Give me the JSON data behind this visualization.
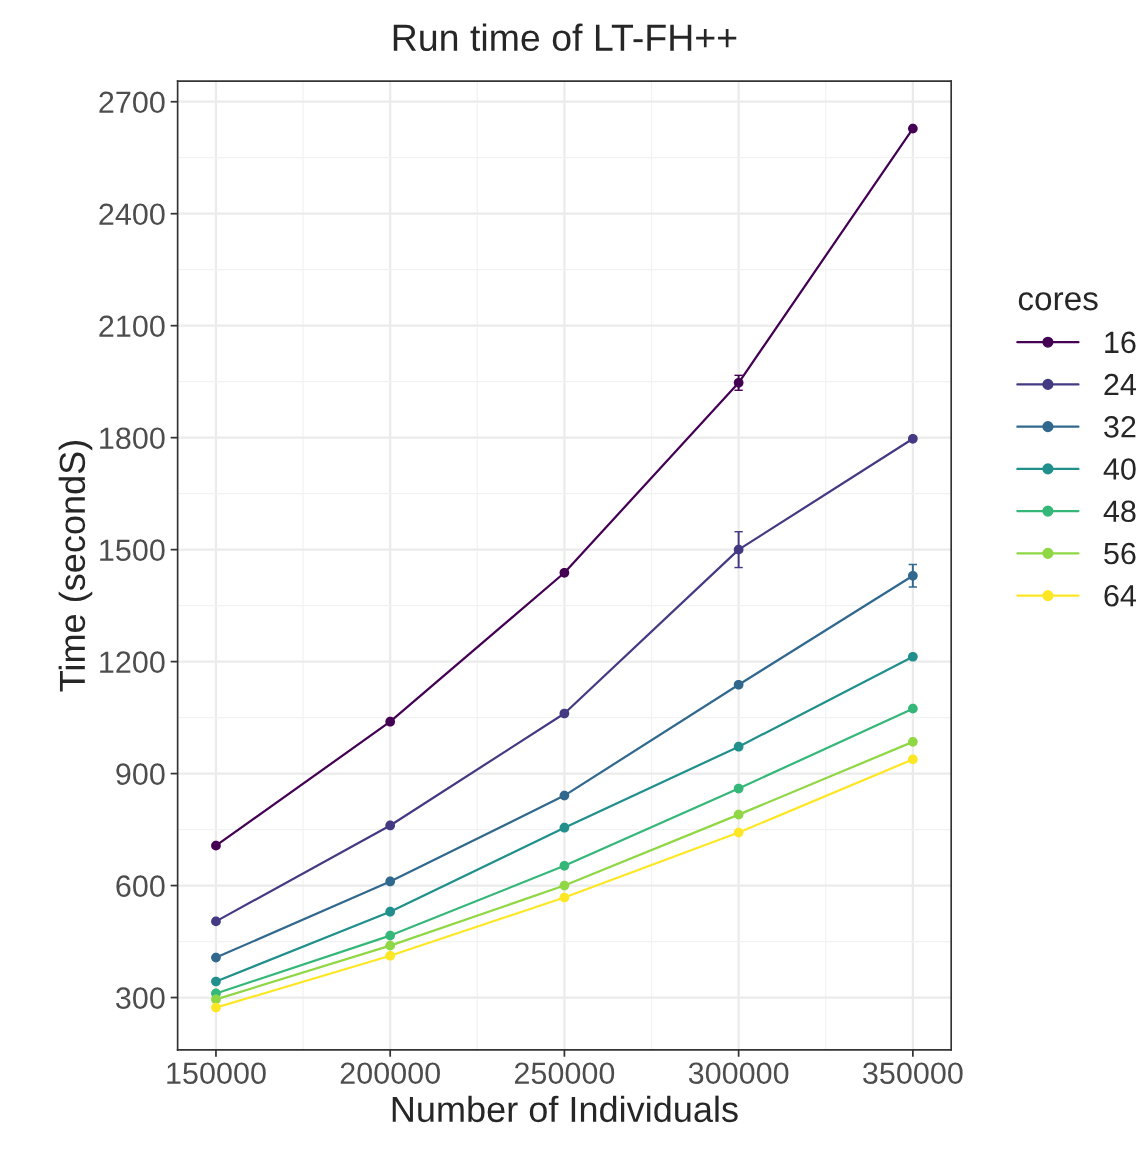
{
  "chart_data": {
    "type": "line",
    "title": "Run time of LT-FH++",
    "xlabel": "Number of Individuals",
    "ylabel": "Time (secondS)",
    "legend_title": "cores",
    "x": [
      150000,
      200000,
      250000,
      300000,
      350000
    ],
    "series": [
      {
        "name": "16",
        "color": "#440154",
        "values": [
          707,
          1039,
          1438,
          1947,
          2628
        ],
        "errors": [
          null,
          null,
          null,
          20,
          null
        ]
      },
      {
        "name": "24",
        "color": "#443a83",
        "values": [
          504,
          761,
          1061,
          1500,
          1797
        ],
        "errors": [
          null,
          null,
          null,
          48,
          null
        ]
      },
      {
        "name": "32",
        "color": "#31688e",
        "values": [
          407,
          611,
          841,
          1138,
          1430
        ],
        "errors": [
          null,
          null,
          null,
          null,
          30
        ]
      },
      {
        "name": "40",
        "color": "#21908c",
        "values": [
          343,
          530,
          755,
          972,
          1213
        ]
      },
      {
        "name": "48",
        "color": "#35b779",
        "values": [
          311,
          466,
          653,
          860,
          1074
        ]
      },
      {
        "name": "56",
        "color": "#8fd744",
        "values": [
          295,
          439,
          600,
          790,
          985
        ]
      },
      {
        "name": "64",
        "color": "#fde725",
        "values": [
          273,
          412,
          568,
          742,
          938
        ]
      }
    ],
    "xlim": [
      139000,
      361000
    ],
    "ylim": [
      160,
      2755
    ],
    "xticks": [
      150000,
      200000,
      250000,
      300000,
      350000
    ],
    "yticks": [
      300,
      600,
      900,
      1200,
      1500,
      1800,
      2100,
      2400,
      2700
    ],
    "grid": true,
    "legend": "right",
    "marker": "circle",
    "line_style": "solid"
  }
}
